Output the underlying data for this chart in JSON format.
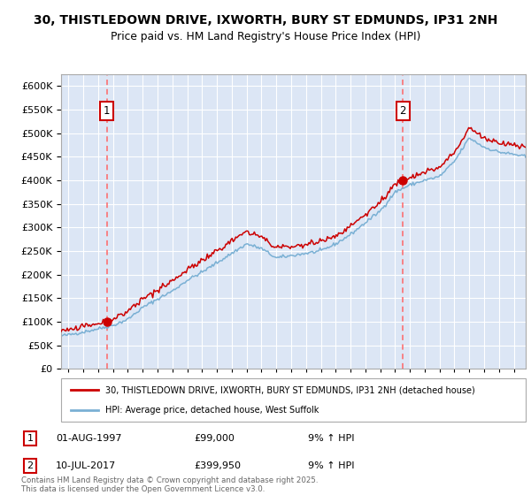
{
  "title_line1": "30, THISTLEDOWN DRIVE, IXWORTH, BURY ST EDMUNDS, IP31 2NH",
  "title_line2": "Price paid vs. HM Land Registry's House Price Index (HPI)",
  "bg_color": "#dce6f5",
  "hpi_color": "#7ab0d4",
  "price_color": "#cc0000",
  "dashed_color": "#ff6666",
  "sale1_date_label": "01-AUG-1997",
  "sale1_price": 99000,
  "sale1_year": 1997.58,
  "sale2_date_label": "10-JUL-2017",
  "sale2_price": 399950,
  "sale2_year": 2017.52,
  "sale1_pct": "9%",
  "sale2_pct": "9%",
  "ylim": [
    0,
    625000
  ],
  "xlim_start": 1994.5,
  "xlim_end": 2025.8,
  "legend_label1": "30, THISTLEDOWN DRIVE, IXWORTH, BURY ST EDMUNDS, IP31 2NH (detached house)",
  "legend_label2": "HPI: Average price, detached house, West Suffolk",
  "footnote": "Contains HM Land Registry data © Crown copyright and database right 2025.\nThis data is licensed under the Open Government Licence v3.0.",
  "control_years": [
    1994.5,
    1995,
    1996,
    1997,
    1998,
    1999,
    2000,
    2001,
    2002,
    2003,
    2004,
    2005,
    2006,
    2007,
    2008,
    2009,
    2010,
    2011,
    2012,
    2013,
    2014,
    2015,
    2016,
    2017,
    2018,
    2019,
    2020,
    2021,
    2022,
    2023,
    2024,
    2025,
    2025.8
  ],
  "control_vals": [
    70000,
    72000,
    78000,
    85000,
    92000,
    105000,
    130000,
    148000,
    165000,
    188000,
    205000,
    225000,
    245000,
    265000,
    255000,
    235000,
    240000,
    245000,
    250000,
    265000,
    285000,
    310000,
    335000,
    375000,
    390000,
    400000,
    408000,
    440000,
    490000,
    470000,
    460000,
    455000,
    450000
  ]
}
